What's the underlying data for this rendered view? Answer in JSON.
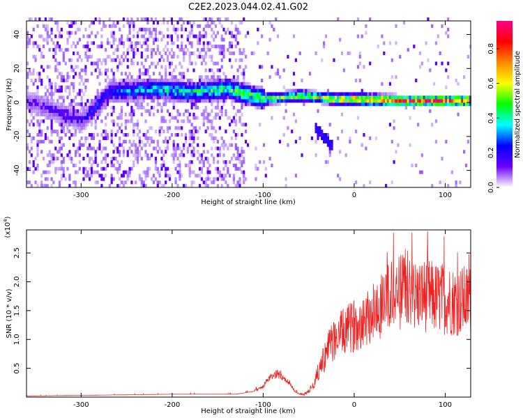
{
  "title": "C2E2.2023.044.02.41.G02",
  "chart_data": [
    {
      "type": "heatmap",
      "xlabel": "Height of straight line (km)",
      "ylabel": "Frequency (Hz)",
      "xlim": [
        -360,
        128
      ],
      "ylim": [
        -50,
        48
      ],
      "x_ticks": [
        -300,
        -200,
        -100,
        0,
        100
      ],
      "y_ticks": [
        -40,
        -20,
        0,
        20,
        40
      ],
      "colorbar": {
        "label": "Normalized spectral amplitude",
        "range": [
          0.0,
          0.96
        ],
        "ticks": [
          "0.0",
          "0.2",
          "0.4",
          "0.6",
          "0.8"
        ],
        "colors": [
          "#ffffff",
          "#6a00ff",
          "#0000ff",
          "#00ffff",
          "#00ff00",
          "#ffff00",
          "#ff8800",
          "#ff0000",
          "#ff0088"
        ]
      },
      "ridge": [
        {
          "x": -360,
          "f": 0,
          "amp": 0.15
        },
        {
          "x": -300,
          "f": -12,
          "amp": 0.2
        },
        {
          "x": -270,
          "f": 5,
          "amp": 0.3
        },
        {
          "x": -220,
          "f": 7,
          "amp": 0.4
        },
        {
          "x": -180,
          "f": 5,
          "amp": 0.45
        },
        {
          "x": -140,
          "f": 7,
          "amp": 0.5
        },
        {
          "x": -100,
          "f": 1,
          "amp": 0.55
        },
        {
          "x": -60,
          "f": 3,
          "amp": 0.6
        },
        {
          "x": -20,
          "f": 1,
          "amp": 0.7
        },
        {
          "x": 0,
          "f": 1,
          "amp": 0.85
        },
        {
          "x": 50,
          "f": 0,
          "amp": 0.9
        },
        {
          "x": 128,
          "f": 0,
          "amp": 0.9
        }
      ],
      "branch": {
        "x": [
          -45,
          -25
        ],
        "f": [
          -15,
          -27
        ]
      }
    },
    {
      "type": "line",
      "xlabel": "Height of straight line (km)",
      "ylabel": "SNR (10 * v/v)",
      "y_multiplier": "(x10^4)",
      "xlim": [
        -360,
        128
      ],
      "ylim": [
        0,
        2.9
      ],
      "x_ticks": [
        -300,
        -200,
        -100,
        0,
        100
      ],
      "y_ticks": [
        0.5,
        1.0,
        1.5,
        2.0,
        2.5
      ],
      "series": [
        {
          "color": "#ee2222",
          "x": [
            -360,
            -300,
            -200,
            -130,
            -110,
            -100,
            -95,
            -90,
            -85,
            -80,
            -75,
            -70,
            -65,
            -60,
            -55,
            -50,
            -45,
            -40,
            -35,
            -30,
            -25,
            -20,
            -15,
            -10,
            -5,
            0,
            10,
            20,
            30,
            40,
            50,
            60,
            70,
            80,
            90,
            100,
            110,
            128
          ],
          "y": [
            0.02,
            0.03,
            0.05,
            0.05,
            0.1,
            0.18,
            0.3,
            0.35,
            0.4,
            0.35,
            0.3,
            0.2,
            0.1,
            0.05,
            0.05,
            0.1,
            0.2,
            0.4,
            0.6,
            0.75,
            0.9,
            1.0,
            1.05,
            1.1,
            1.15,
            1.2,
            1.3,
            1.4,
            1.55,
            1.7,
            1.75,
            1.7,
            1.7,
            1.7,
            1.65,
            1.65,
            1.6,
            1.62
          ]
        }
      ]
    }
  ]
}
